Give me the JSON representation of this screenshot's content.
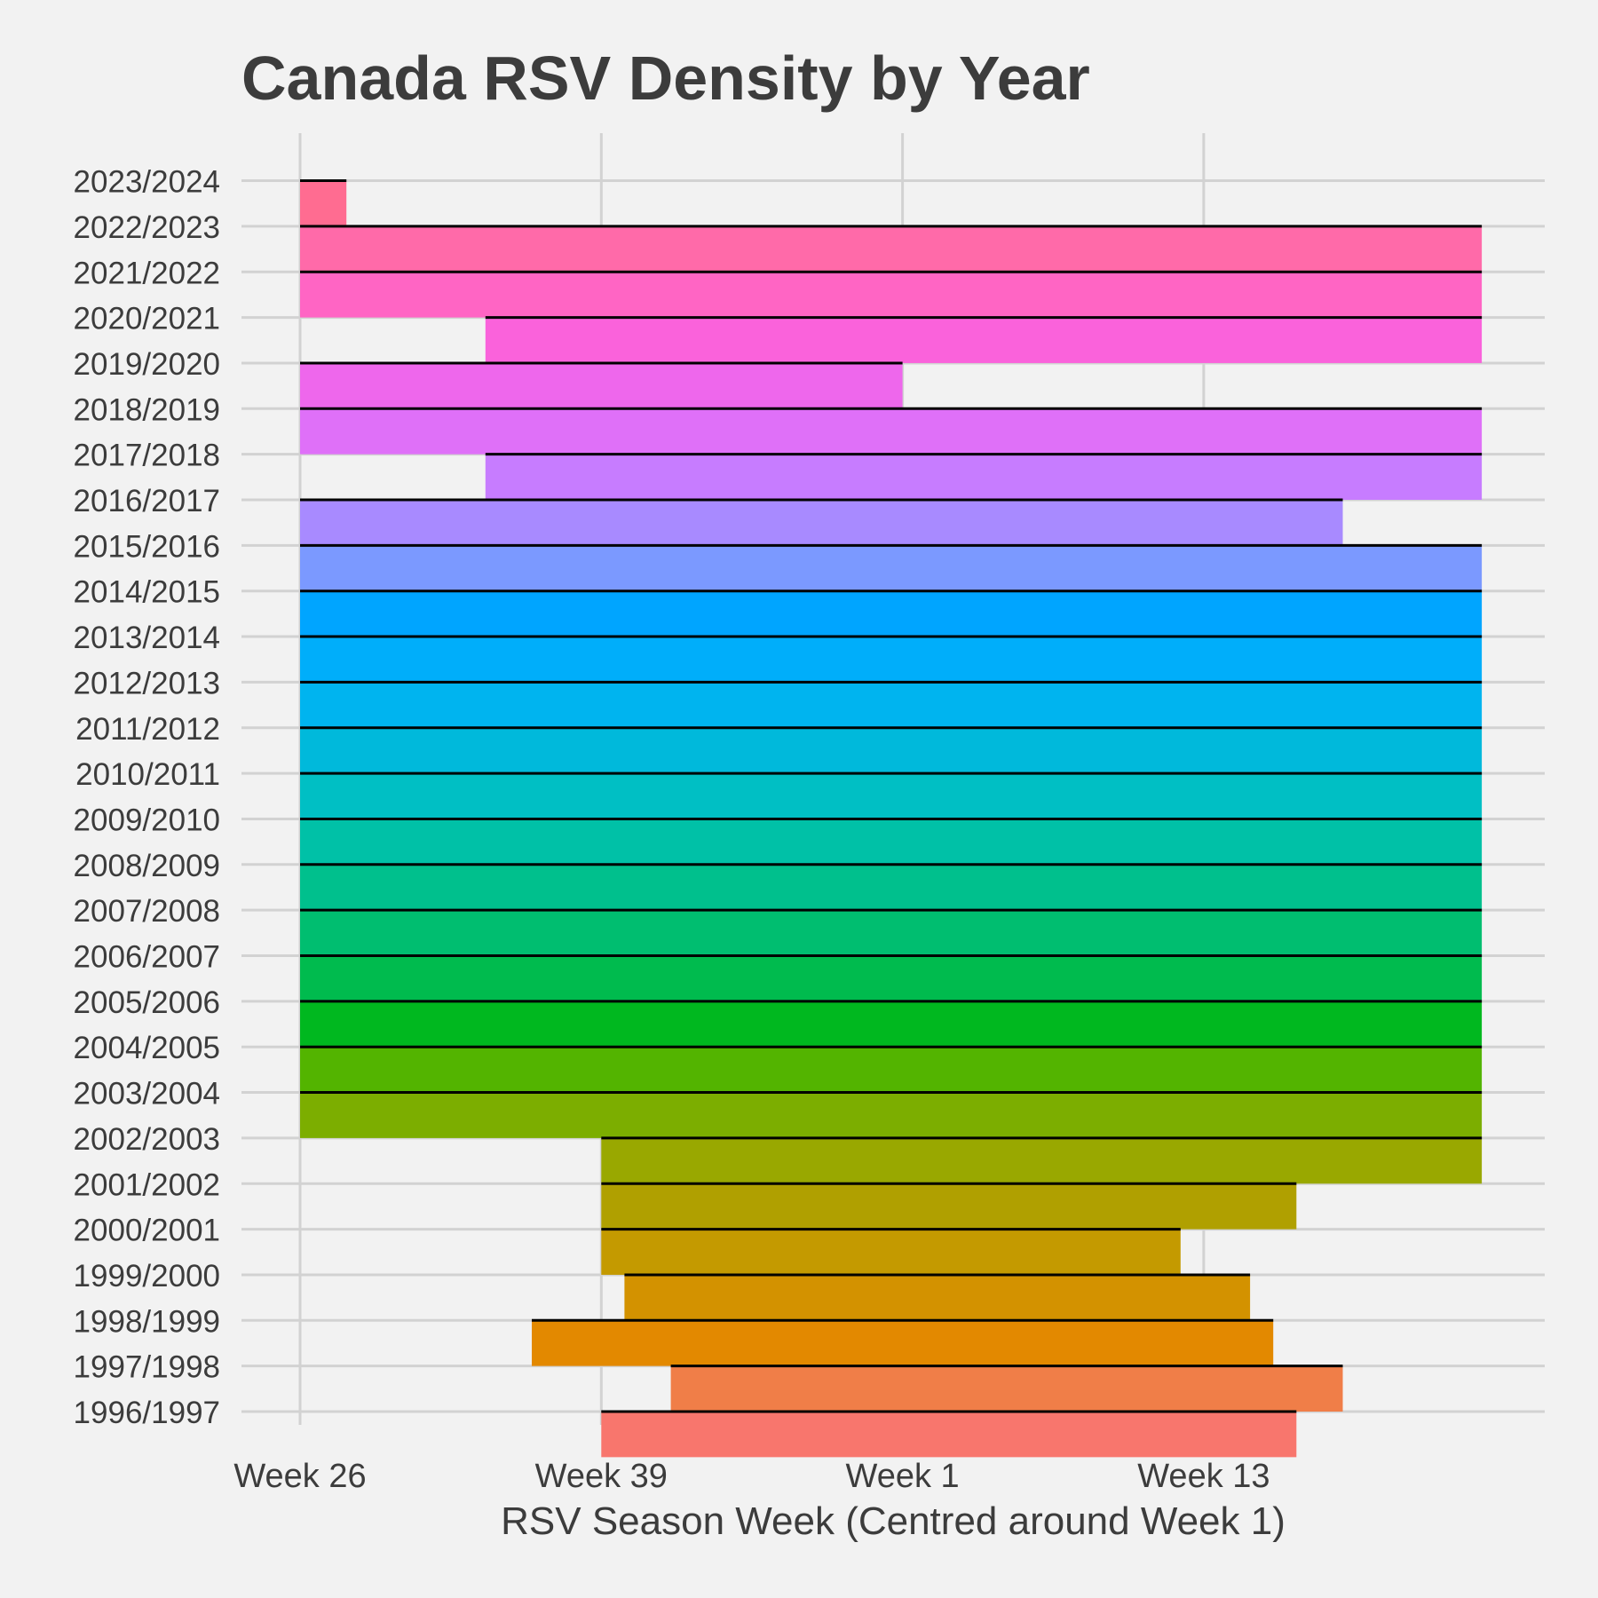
{
  "chart_data": {
    "type": "ridgeline",
    "title": "Canada RSV Density by Year",
    "xlabel": "RSV Season Week (Centred around Week 1)",
    "ylabel": "",
    "x_ticks": [
      {
        "label": "Week 26",
        "season_index": 0
      },
      {
        "label": "Week 39",
        "season_index": 13
      },
      {
        "label": "Week 1",
        "season_index": 26
      },
      {
        "label": "Week 13",
        "season_index": 39
      }
    ],
    "x_range_season_index": [
      -2.5,
      53.5
    ],
    "grid": true,
    "legend": "none",
    "series": [
      {
        "name": "1996/1997",
        "start": 13,
        "end": 43,
        "color": "#F8766D"
      },
      {
        "name": "1997/1998",
        "start": 16,
        "end": 45,
        "color": "#F07E48"
      },
      {
        "name": "1998/1999",
        "start": 10,
        "end": 42,
        "color": "#E38900"
      },
      {
        "name": "1999/2000",
        "start": 14,
        "end": 41,
        "color": "#D39200"
      },
      {
        "name": "2000/2001",
        "start": 13,
        "end": 38,
        "color": "#C49A00"
      },
      {
        "name": "2001/2002",
        "start": 13,
        "end": 43,
        "color": "#B0A000"
      },
      {
        "name": "2002/2003",
        "start": 13,
        "end": 51,
        "color": "#99A800"
      },
      {
        "name": "2003/2004",
        "start": 0,
        "end": 51,
        "color": "#7CAE00"
      },
      {
        "name": "2004/2005",
        "start": 0,
        "end": 51,
        "color": "#53B400"
      },
      {
        "name": "2005/2006",
        "start": 0,
        "end": 51,
        "color": "#00B81F"
      },
      {
        "name": "2006/2007",
        "start": 0,
        "end": 51,
        "color": "#00BB4E"
      },
      {
        "name": "2007/2008",
        "start": 0,
        "end": 51,
        "color": "#00BE70"
      },
      {
        "name": "2008/2009",
        "start": 0,
        "end": 51,
        "color": "#00C08D"
      },
      {
        "name": "2009/2010",
        "start": 0,
        "end": 51,
        "color": "#00C1A7"
      },
      {
        "name": "2010/2011",
        "start": 0,
        "end": 51,
        "color": "#00BFC4"
      },
      {
        "name": "2011/2012",
        "start": 0,
        "end": 51,
        "color": "#00B9DB"
      },
      {
        "name": "2012/2013",
        "start": 0,
        "end": 51,
        "color": "#00B4EF"
      },
      {
        "name": "2013/2014",
        "start": 0,
        "end": 51,
        "color": "#00AEFA"
      },
      {
        "name": "2014/2015",
        "start": 0,
        "end": 51,
        "color": "#00A5FF"
      },
      {
        "name": "2015/2016",
        "start": 0,
        "end": 51,
        "color": "#7B99FF"
      },
      {
        "name": "2016/2017",
        "start": 0,
        "end": 45,
        "color": "#A88AFF"
      },
      {
        "name": "2017/2018",
        "start": 8,
        "end": 51,
        "color": "#C77CFF"
      },
      {
        "name": "2018/2019",
        "start": 0,
        "end": 51,
        "color": "#DF70F8"
      },
      {
        "name": "2019/2020",
        "start": 0,
        "end": 26,
        "color": "#EE67EC"
      },
      {
        "name": "2020/2021",
        "start": 8,
        "end": 51,
        "color": "#FA62DB"
      },
      {
        "name": "2021/2022",
        "start": 0,
        "end": 51,
        "color": "#FF65C4"
      },
      {
        "name": "2022/2023",
        "start": 0,
        "end": 51,
        "color": "#FF6AA9"
      },
      {
        "name": "2023/2024",
        "start": 0,
        "end": 2,
        "color": "#FF6C91"
      }
    ]
  }
}
